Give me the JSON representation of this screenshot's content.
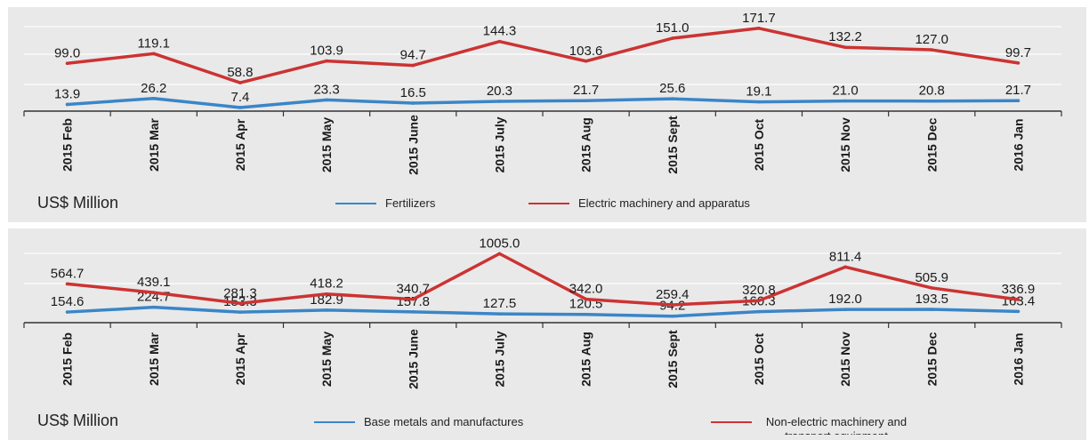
{
  "chart_data": [
    {
      "type": "line",
      "categories": [
        "2015 Feb",
        "2015 Mar",
        "2015 Apr",
        "2015 May",
        "2015 June",
        "2015 July",
        "2015 Aug",
        "2015 Sept",
        "2015 Oct",
        "2015 Nov",
        "2015 Dec",
        "2016 Jan"
      ],
      "series": [
        {
          "name": "Fertilizers",
          "color": "#3a86c8",
          "values": [
            13.9,
            26.2,
            7.4,
            23.3,
            16.5,
            20.3,
            21.7,
            25.6,
            19.1,
            21.0,
            20.8,
            21.7
          ]
        },
        {
          "name": "Electric machinery and apparatus",
          "color": "#cc3333",
          "values": [
            99.0,
            119.1,
            58.8,
            103.9,
            94.7,
            144.3,
            103.6,
            151.0,
            171.7,
            132.2,
            127.0,
            99.7
          ]
        }
      ],
      "ylabel": "US$ Million",
      "ylim": [
        0,
        175
      ],
      "grid": true,
      "legend": "bottom"
    },
    {
      "type": "line",
      "categories": [
        "2015 Feb",
        "2015 Mar",
        "2015 Apr",
        "2015 May",
        "2015 June",
        "2015 July",
        "2015 Aug",
        "2015 Sept",
        "2015 Oct",
        "2015 Nov",
        "2015 Dec",
        "2016 Jan"
      ],
      "series": [
        {
          "name": "Base metals and manufactures",
          "color": "#3a86c8",
          "values": [
            154.6,
            224.7,
            153.3,
            182.9,
            157.8,
            127.5,
            120.5,
            94.2,
            160.3,
            192.0,
            193.5,
            163.4
          ]
        },
        {
          "name": "Non-electric machinery and transport equipment",
          "color": "#cc3333",
          "values": [
            564.7,
            439.1,
            281.3,
            418.2,
            340.7,
            1005.0,
            342.0,
            259.4,
            320.8,
            811.4,
            505.9,
            336.9
          ]
        }
      ],
      "ylabel": "US$ Million",
      "ylim": [
        0,
        1010
      ],
      "grid": true,
      "legend": "bottom"
    }
  ]
}
